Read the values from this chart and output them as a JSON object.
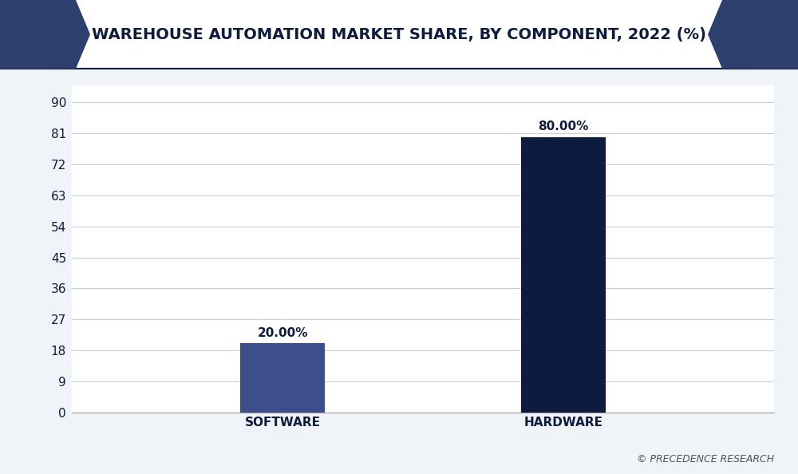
{
  "title": "WAREHOUSE AUTOMATION MARKET SHARE, BY COMPONENT, 2022 (%)",
  "categories": [
    "SOFTWARE",
    "HARDWARE"
  ],
  "values": [
    20.0,
    80.0
  ],
  "bar_colors": [
    "#3d4f8a",
    "#0d1b3e"
  ],
  "background_color": "#f0f4f8",
  "plot_bg_color": "#ffffff",
  "yticks": [
    0,
    9,
    18,
    27,
    36,
    45,
    54,
    63,
    72,
    81,
    90
  ],
  "ylim": [
    0,
    95
  ],
  "value_labels": [
    "20.00%",
    "80.00%"
  ],
  "bar_width": 0.12,
  "x_positions": [
    0.3,
    0.7
  ],
  "xlim": [
    0.0,
    1.0
  ],
  "title_fontsize": 14,
  "tick_fontsize": 11,
  "label_fontsize": 11,
  "value_label_fontsize": 11,
  "watermark": "© PRECEDENCE RESEARCH",
  "title_color": "#0d1b3e",
  "tick_color": "#0d1b3e",
  "grid_color": "#cccccc",
  "header_bg_color": "#ffffff",
  "accent_color": "#2d3f6e",
  "accent_color2": "#4a5a8a",
  "border_color": "#0d1b3e"
}
